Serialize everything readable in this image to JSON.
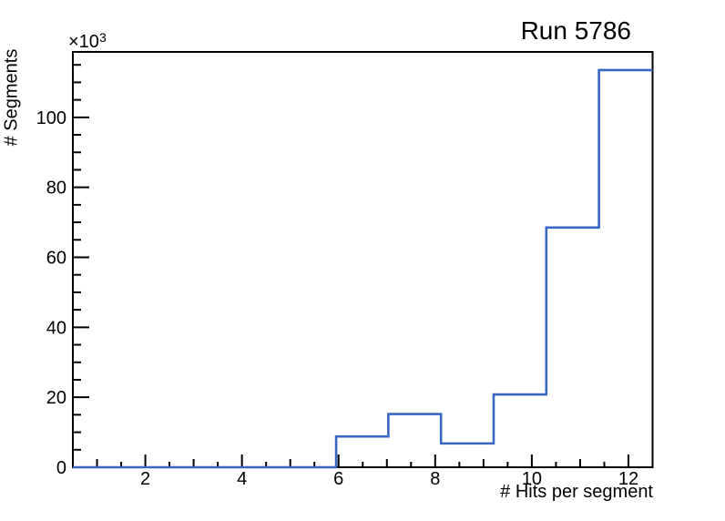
{
  "header": {
    "title": "Run 5786"
  },
  "chart_data": {
    "type": "bar",
    "subtype": "step-histogram",
    "title": "Run 5786",
    "xlabel": "# Hits per segment",
    "ylabel": "# Segments",
    "bin_edges": [
      0.5,
      1.59,
      2.68,
      3.77,
      4.86,
      5.95,
      7.03,
      8.12,
      9.21,
      10.3,
      11.39,
      12.5
    ],
    "values": [
      0,
      0,
      0,
      0,
      0,
      8800,
      15200,
      6800,
      20800,
      68500,
      113500
    ],
    "xlim": [
      0.5,
      12.5
    ],
    "ylim": [
      0,
      118700
    ],
    "grid": false,
    "legend": false,
    "line_color": "#3a67c2",
    "axis_color": "#000000",
    "background_color": "#ffffff",
    "x_axis": {
      "tick_values": [
        2,
        4,
        6,
        8,
        10,
        12
      ],
      "tick_labels": [
        "2",
        "4",
        "6",
        "8",
        "10",
        "12"
      ],
      "mid_tick_values": [
        1,
        3,
        5,
        7,
        9,
        11
      ],
      "minor_tick_step": 0.5
    },
    "y_axis": {
      "tick_values": [
        0,
        20000,
        40000,
        60000,
        80000,
        100000
      ],
      "tick_labels": [
        "0",
        "20",
        "40",
        "60",
        "80",
        "100"
      ],
      "minor_tick_step": 5000,
      "multiplier_base": "×10",
      "multiplier_exp": "3"
    }
  }
}
